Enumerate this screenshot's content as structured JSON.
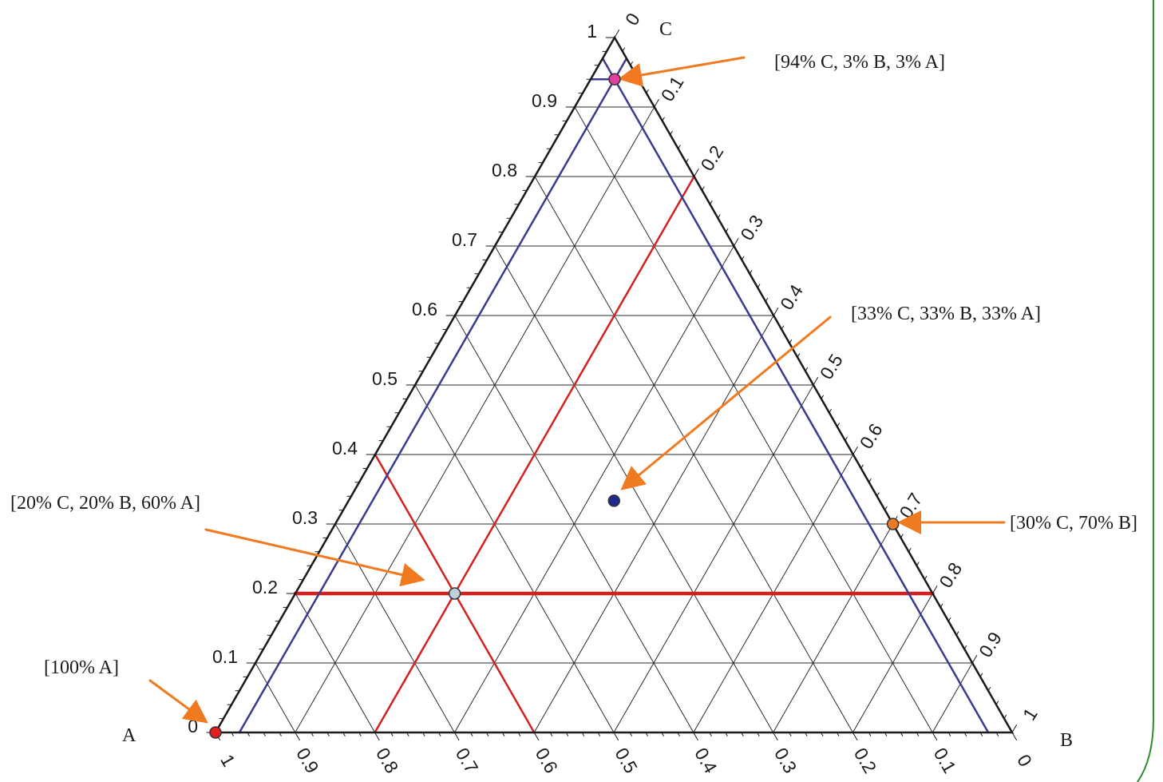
{
  "diagram": {
    "type": "ternary",
    "vertices": {
      "A": "A",
      "B": "B",
      "C": "C"
    },
    "ticks": {
      "left": [
        "0",
        "0.1",
        "0.2",
        "0.3",
        "0.4",
        "0.5",
        "0.6",
        "0.7",
        "0.8",
        "0.9",
        "1"
      ],
      "right": [
        "0",
        "0.1",
        "0.2",
        "0.3",
        "0.4",
        "0.5",
        "0.6",
        "0.7",
        "0.8",
        "0.9",
        "1"
      ],
      "bottom": [
        "1",
        "0.9",
        "0.8",
        "0.7",
        "0.6",
        "0.5",
        "0.4",
        "0.3",
        "0.2",
        "0.1",
        "0"
      ]
    },
    "points": [
      {
        "id": "pure-a",
        "a": 1,
        "b": 0,
        "c": 0,
        "color": "#e02020",
        "label": "[100% A]"
      },
      {
        "id": "mix-20-20-60",
        "a": 0.6,
        "b": 0.2,
        "c": 0.2,
        "color": "#c0d0d8",
        "label": "[20% C, 20% B, 60% A]"
      },
      {
        "id": "mix-33",
        "a": 0.3333,
        "b": 0.3333,
        "c": 0.3333,
        "color": "#1e2a8c",
        "label": "[33% C, 33% B, 33% A]"
      },
      {
        "id": "mix-30c-70b",
        "a": 0,
        "b": 0.7,
        "c": 0.3,
        "color": "#f07a20",
        "label": "[30% C, 70% B]"
      },
      {
        "id": "mix-94c",
        "a": 0.03,
        "b": 0.03,
        "c": 0.94,
        "color": "#e040a0",
        "label": "[94% C, 3% B, 3% A]"
      }
    ],
    "colors": {
      "grid": "#2b2b2b",
      "frame": "#1a1a1a",
      "red_lines": "#d62020",
      "blue_lines": "#3a3a90",
      "arrows": "#f07a20",
      "border": "#2e8b2e"
    }
  }
}
